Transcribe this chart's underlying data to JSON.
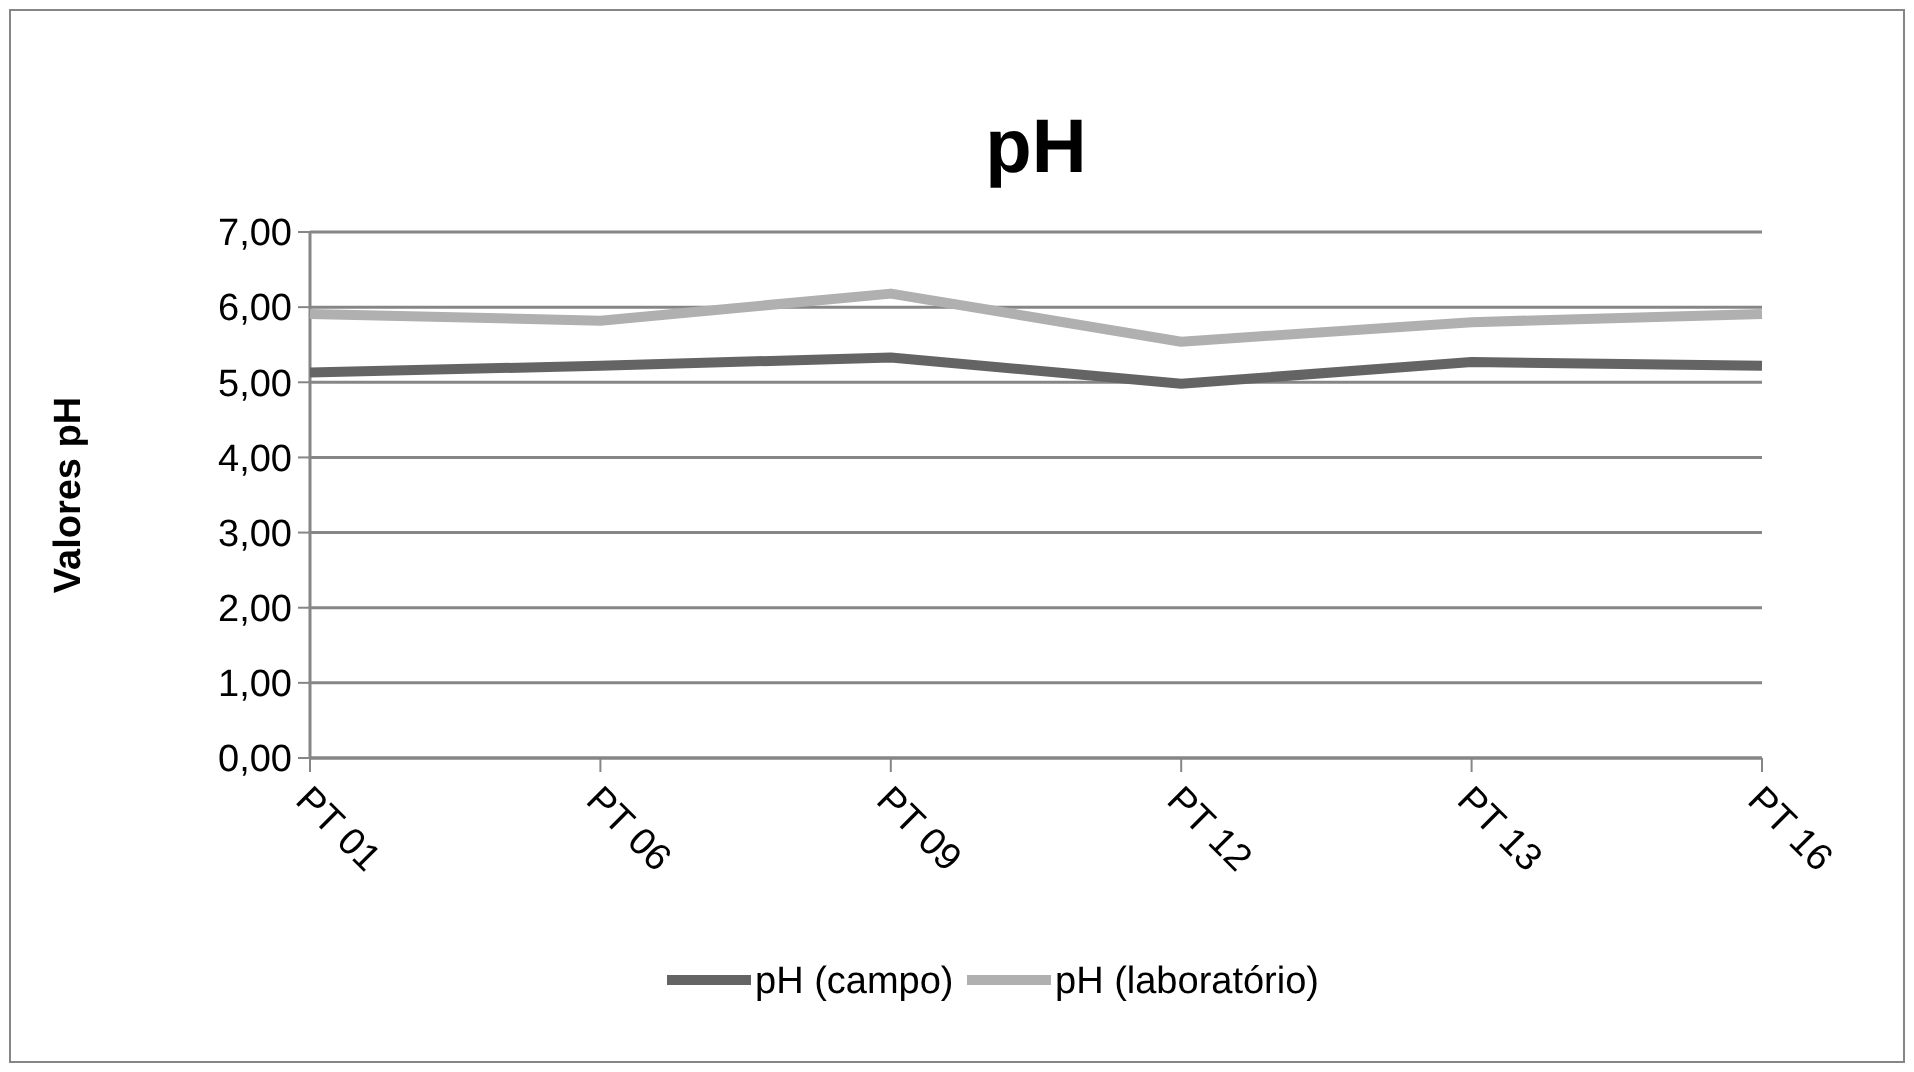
{
  "chart_data": {
    "type": "line",
    "title": "pH",
    "ylabel": "Valores pH",
    "categories": [
      "PT 01",
      "PT 06",
      "PT 09",
      "PT 12",
      "PT 13",
      "PT 16"
    ],
    "series": [
      {
        "name": "pH (campo)",
        "color": "#646464",
        "values": [
          5.13,
          5.22,
          5.33,
          4.98,
          5.27,
          5.22
        ]
      },
      {
        "name": "pH (laboratório)",
        "color": "#b0b0b0",
        "values": [
          5.91,
          5.82,
          6.18,
          5.54,
          5.8,
          5.91
        ]
      }
    ],
    "ylim": [
      0,
      7
    ],
    "yticks": [
      {
        "value": 0,
        "label": "0,00"
      },
      {
        "value": 1,
        "label": "1,00"
      },
      {
        "value": 2,
        "label": "2,00"
      },
      {
        "value": 3,
        "label": "3,00"
      },
      {
        "value": 4,
        "label": "4,00"
      },
      {
        "value": 5,
        "label": "5,00"
      },
      {
        "value": 6,
        "label": "6,00"
      },
      {
        "value": 7,
        "label": "7,00"
      }
    ],
    "grid": "y",
    "legend": "bottom",
    "marker": "none",
    "line_style": "solid"
  }
}
